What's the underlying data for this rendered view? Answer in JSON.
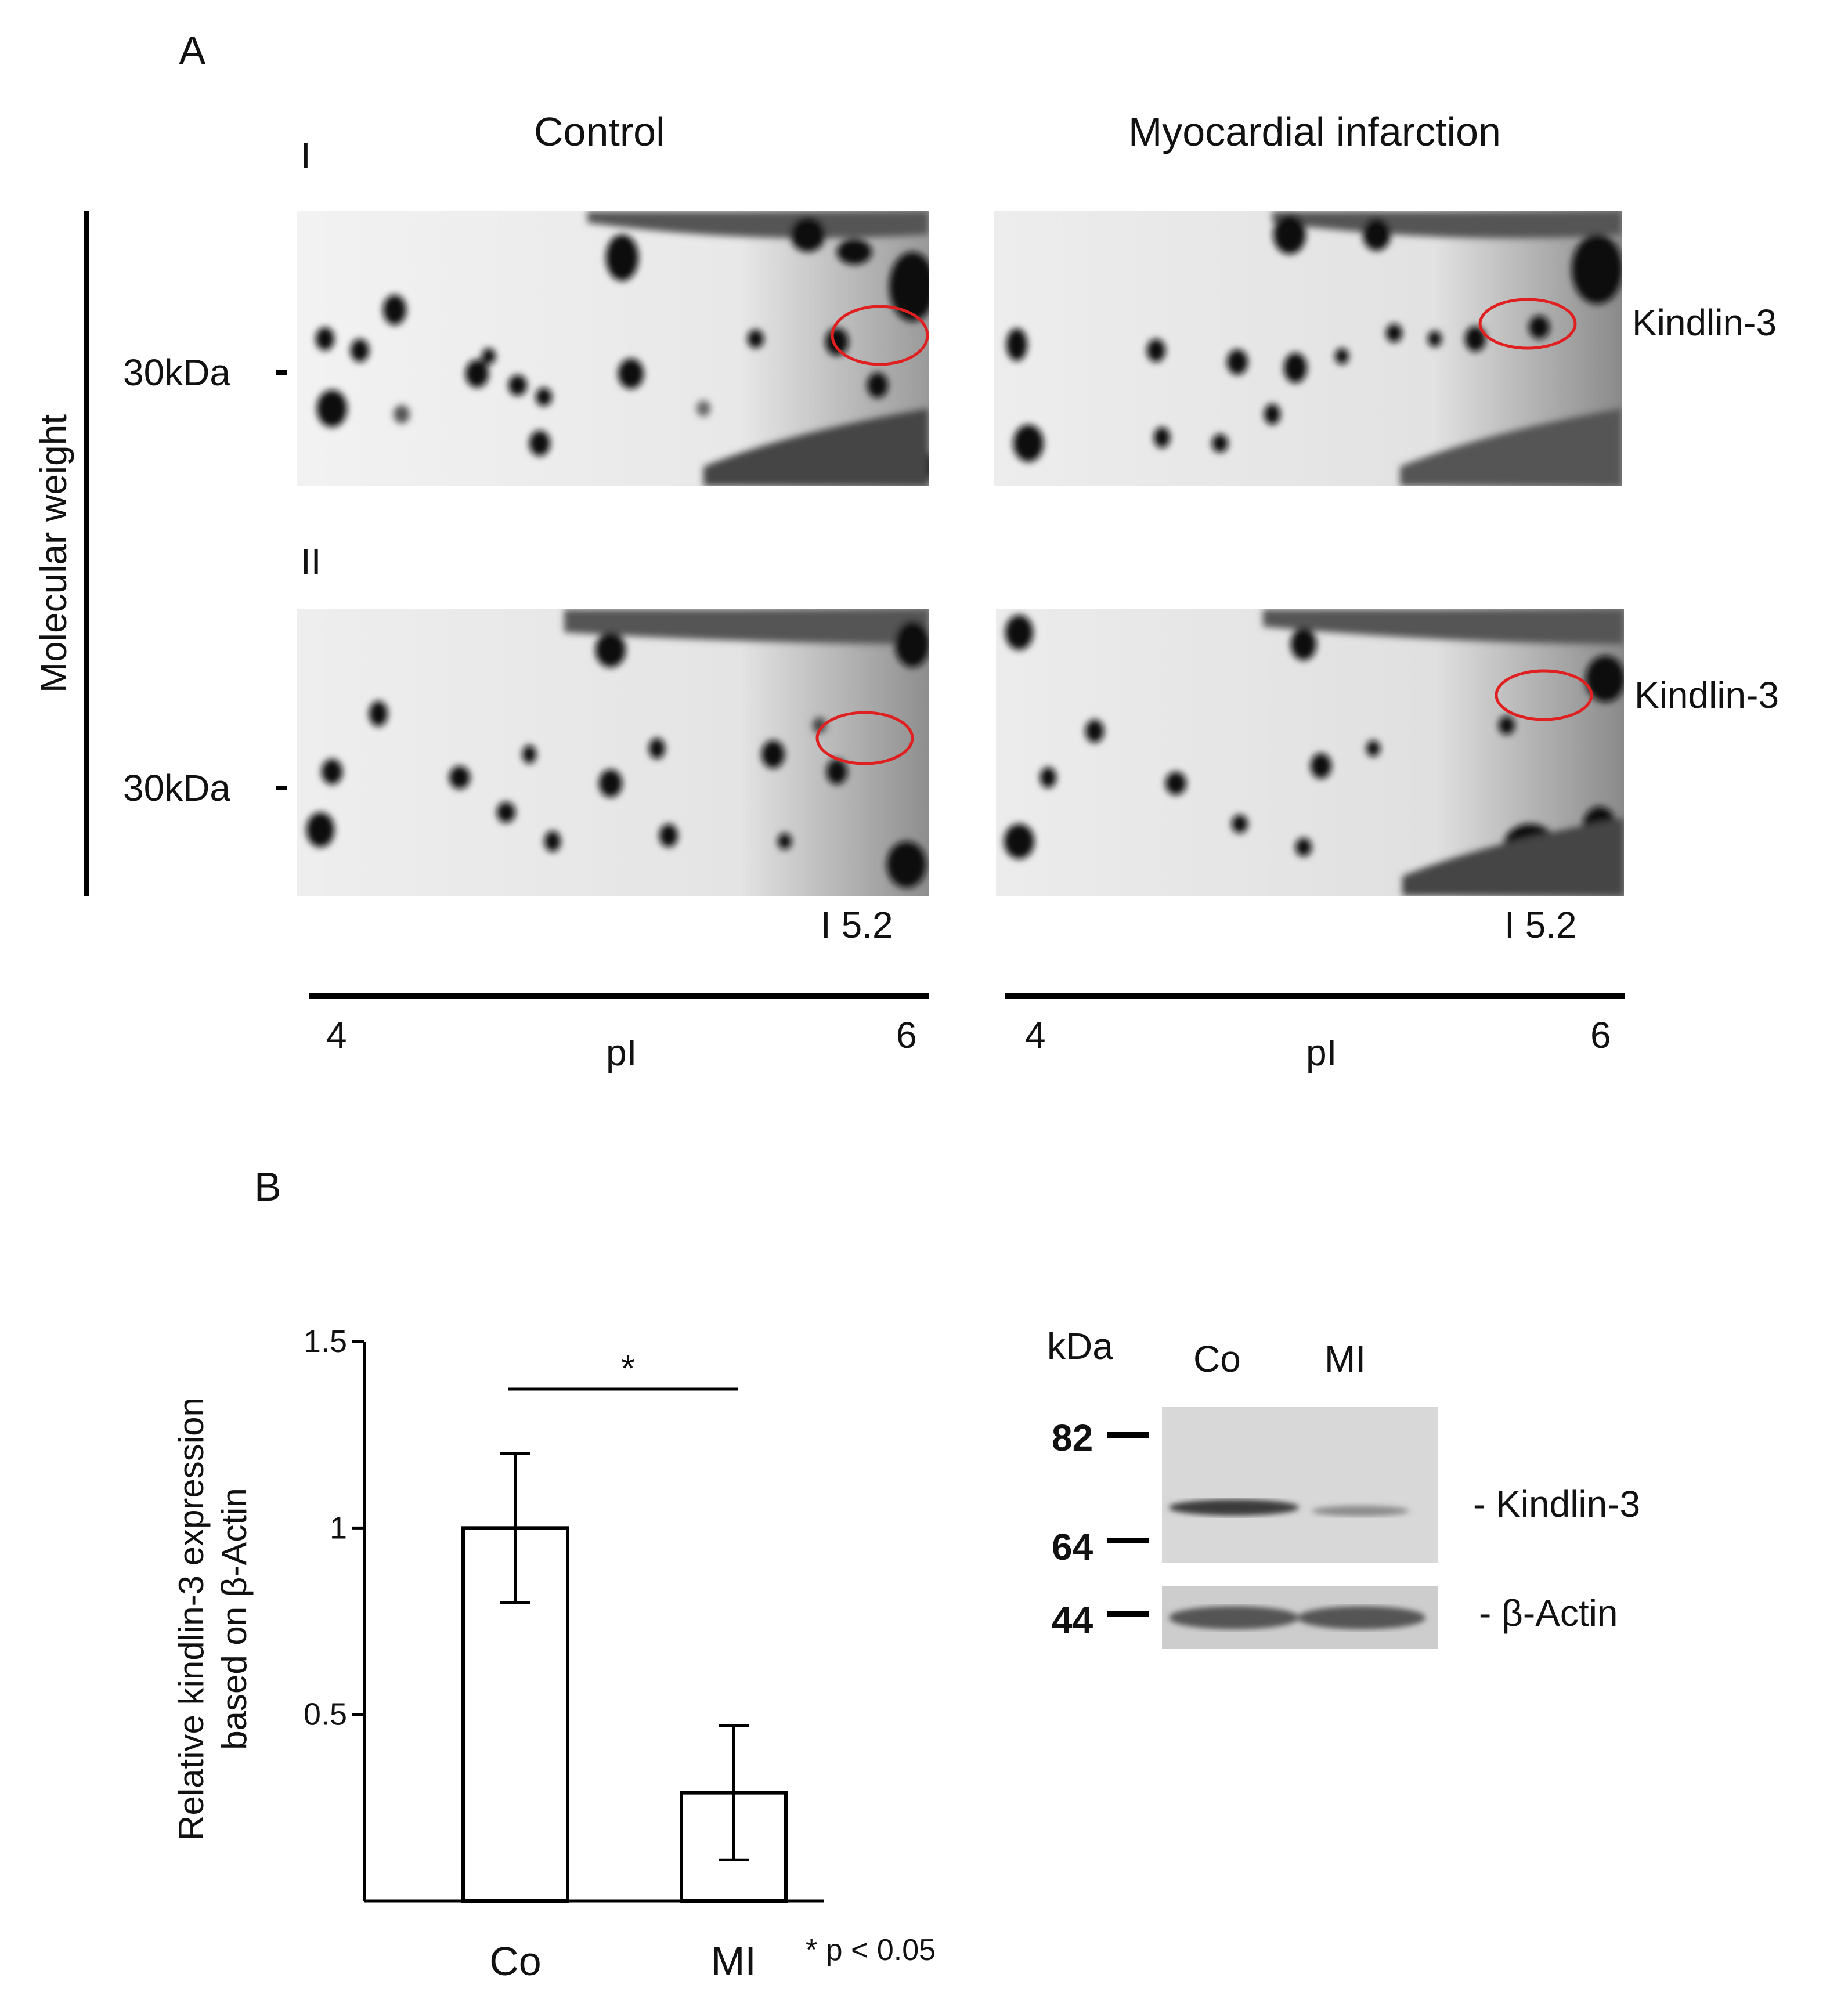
{
  "panel_a": {
    "letter": "A",
    "headers": {
      "control": "Control",
      "mi": "Myocardial infarction"
    },
    "row_labels": {
      "row1": "I",
      "row2": "II"
    },
    "y_axis_label": "Molecular weight",
    "mw_marker": "30kDa",
    "spot_label": "Kindlin-3",
    "pi_marker": "I 5.2",
    "x_axis": {
      "label": "pI",
      "min_label": "4",
      "max_label": "6"
    }
  },
  "panel_b": {
    "letter": "B",
    "chart": {
      "y_label_line1": "Relative kindlin-3 expression",
      "y_label_line2": "based on β-Actin",
      "significance_marker": "*",
      "footnote": "* p < 0.05",
      "y_ticks": [
        "0.5",
        "1",
        "1.5"
      ]
    },
    "blot": {
      "unit": "kDa",
      "lanes": [
        "Co",
        "MI"
      ],
      "markers": [
        "82",
        "64",
        "44"
      ],
      "bands": [
        "- Kindlin-3",
        "- β-Actin"
      ]
    }
  },
  "chart_data": {
    "type": "bar",
    "categories": [
      "Co",
      "MI"
    ],
    "values": [
      1.0,
      0.29
    ],
    "errors": [
      0.2,
      0.18
    ],
    "ylabel": "Relative kindlin-3 expression based on β-Actin",
    "ylim": [
      0,
      1.5
    ],
    "yticks": [
      0.5,
      1,
      1.5
    ],
    "significance": {
      "between": [
        "Co",
        "MI"
      ],
      "marker": "*",
      "note": "* p < 0.05"
    }
  }
}
